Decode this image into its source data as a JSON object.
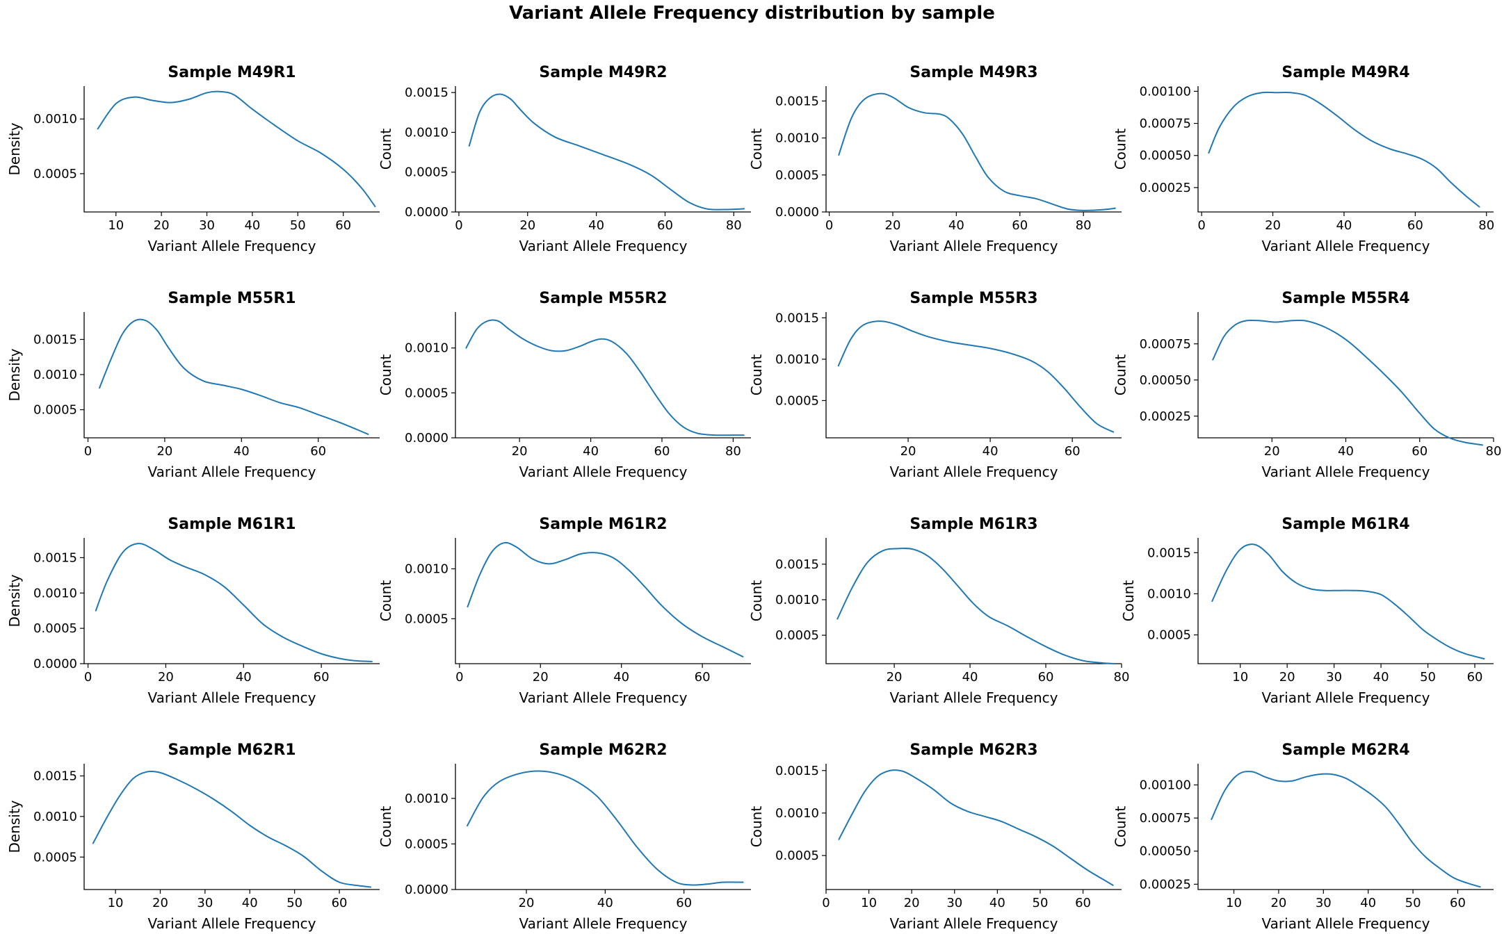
{
  "figure": {
    "suptitle": "Variant Allele Frequency distribution by sample",
    "line_color": "#1f77b4",
    "grid": false,
    "layout": "4x4"
  },
  "chart_data": [
    {
      "type": "line",
      "title": "Sample M49R1",
      "xlabel": "Variant Allele Frequency",
      "ylabel": "Density",
      "xlim": [
        3,
        68
      ],
      "ylim": [
        0.00015,
        0.0013
      ],
      "xticks": [
        10,
        20,
        30,
        40,
        50,
        60
      ],
      "xtick_labels": [
        "10",
        "20",
        "30",
        "40",
        "50",
        "60"
      ],
      "yticks": [
        0.0005,
        0.001
      ],
      "ytick_labels": [
        "0.0005",
        "0.0010"
      ],
      "x": [
        6,
        10,
        14,
        18,
        22,
        26,
        30,
        33,
        36,
        40,
        45,
        50,
        55,
        60,
        64,
        67
      ],
      "y": [
        0.00091,
        0.00114,
        0.0012,
        0.00117,
        0.00115,
        0.00118,
        0.00124,
        0.00125,
        0.00122,
        0.00109,
        0.00094,
        0.0008,
        0.00069,
        0.00054,
        0.00037,
        0.0002
      ]
    },
    {
      "type": "line",
      "title": "Sample M49R2",
      "xlabel": "Variant Allele Frequency",
      "ylabel": "Count",
      "xlim": [
        -1,
        85
      ],
      "ylim": [
        0,
        0.00158
      ],
      "xticks": [
        0,
        20,
        40,
        60,
        80
      ],
      "xtick_labels": [
        "0",
        "20",
        "40",
        "60",
        "80"
      ],
      "yticks": [
        0,
        0.0005,
        0.001,
        0.0015
      ],
      "ytick_labels": [
        "0.0000",
        "0.0005",
        "0.0010",
        "0.0015"
      ],
      "x": [
        3,
        6,
        9,
        12,
        15,
        18,
        22,
        28,
        35,
        42,
        50,
        56,
        62,
        67,
        72,
        77,
        83
      ],
      "y": [
        0.00083,
        0.00125,
        0.00143,
        0.00148,
        0.00142,
        0.00128,
        0.00111,
        0.00094,
        0.00083,
        0.00072,
        0.00059,
        0.00046,
        0.00027,
        0.00012,
        4e-05,
        3e-05,
        4e-05
      ]
    },
    {
      "type": "line",
      "title": "Sample M49R3",
      "xlabel": "Variant Allele Frequency",
      "ylabel": "Count",
      "xlim": [
        -1,
        92
      ],
      "ylim": [
        0,
        0.0017
      ],
      "xticks": [
        0,
        20,
        40,
        60,
        80
      ],
      "xtick_labels": [
        "0",
        "20",
        "40",
        "60",
        "80"
      ],
      "yticks": [
        0,
        0.0005,
        0.001,
        0.0015
      ],
      "ytick_labels": [
        "0.0000",
        "0.0005",
        "0.0010",
        "0.0015"
      ],
      "x": [
        3,
        7,
        11,
        16,
        20,
        25,
        30,
        35,
        38,
        42,
        46,
        50,
        55,
        60,
        65,
        70,
        75,
        80,
        86,
        90
      ],
      "y": [
        0.00077,
        0.00127,
        0.00152,
        0.0016,
        0.00155,
        0.00141,
        0.00134,
        0.00132,
        0.00125,
        0.00105,
        0.00075,
        0.00047,
        0.00028,
        0.00022,
        0.00018,
        0.00011,
        4e-05,
        2e-05,
        3e-05,
        5e-05
      ]
    },
    {
      "type": "line",
      "title": "Sample M49R4",
      "xlabel": "Variant Allele Frequency",
      "ylabel": "Count",
      "xlim": [
        -1,
        82
      ],
      "ylim": [
        6e-05,
        0.00104
      ],
      "xticks": [
        0,
        20,
        40,
        60,
        80
      ],
      "xtick_labels": [
        "0",
        "20",
        "40",
        "60",
        "80"
      ],
      "yticks": [
        0.00025,
        0.0005,
        0.00075,
        0.001
      ],
      "ytick_labels": [
        "0.00025",
        "0.00050",
        "0.00075",
        "0.00100"
      ],
      "x": [
        2,
        5,
        9,
        13,
        17,
        21,
        25,
        29,
        33,
        38,
        43,
        48,
        53,
        58,
        62,
        66,
        70,
        74,
        78
      ],
      "y": [
        0.00052,
        0.00072,
        0.00088,
        0.00096,
        0.00099,
        0.00099,
        0.00099,
        0.00097,
        0.00091,
        0.00081,
        0.0007,
        0.00061,
        0.00055,
        0.00051,
        0.00047,
        0.0004,
        0.00029,
        0.00019,
        0.0001
      ]
    },
    {
      "type": "line",
      "title": "Sample M55R1",
      "xlabel": "Variant Allele Frequency",
      "ylabel": "Density",
      "xlim": [
        -1,
        76
      ],
      "ylim": [
        0.0001,
        0.00189
      ],
      "xticks": [
        0,
        20,
        40,
        60
      ],
      "xtick_labels": [
        "0",
        "20",
        "40",
        "60"
      ],
      "yticks": [
        0.0005,
        0.001,
        0.0015
      ],
      "ytick_labels": [
        "0.0005",
        "0.0010",
        "0.0015"
      ],
      "x": [
        3,
        6,
        9,
        12,
        15,
        18,
        21,
        25,
        30,
        35,
        40,
        45,
        50,
        55,
        60,
        65,
        70,
        73
      ],
      "y": [
        0.00081,
        0.00122,
        0.00158,
        0.00176,
        0.00177,
        0.00163,
        0.00138,
        0.00109,
        0.00091,
        0.00085,
        0.00079,
        0.0007,
        0.0006,
        0.00053,
        0.00043,
        0.00033,
        0.00022,
        0.00015
      ]
    },
    {
      "type": "line",
      "title": "Sample M55R2",
      "xlabel": "Variant Allele Frequency",
      "ylabel": "Count",
      "xlim": [
        2,
        85
      ],
      "ylim": [
        0,
        0.0014
      ],
      "xticks": [
        20,
        40,
        60,
        80
      ],
      "xtick_labels": [
        "20",
        "40",
        "60",
        "80"
      ],
      "yticks": [
        0,
        0.0005,
        0.001
      ],
      "ytick_labels": [
        "0.0000",
        "0.0005",
        "0.0010"
      ],
      "x": [
        5,
        8,
        11,
        14,
        17,
        21,
        25,
        29,
        33,
        37,
        40,
        43,
        46,
        50,
        54,
        58,
        62,
        66,
        70,
        75,
        80,
        83
      ],
      "y": [
        0.001,
        0.00121,
        0.0013,
        0.0013,
        0.00121,
        0.0011,
        0.00102,
        0.00097,
        0.00097,
        0.00102,
        0.00107,
        0.0011,
        0.00107,
        0.00094,
        0.00073,
        0.00049,
        0.00027,
        0.00012,
        5e-05,
        3e-05,
        3e-05,
        3e-05
      ]
    },
    {
      "type": "line",
      "title": "Sample M55R3",
      "xlabel": "Variant Allele Frequency",
      "ylabel": "Count",
      "xlim": [
        0,
        72
      ],
      "ylim": [
        5e-05,
        0.00157
      ],
      "xticks": [
        20,
        40,
        60
      ],
      "xtick_labels": [
        "20",
        "40",
        "60"
      ],
      "yticks": [
        0.0005,
        0.001,
        0.0015
      ],
      "ytick_labels": [
        "0.0005",
        "0.0010",
        "0.0015"
      ],
      "x": [
        3,
        6,
        9,
        13,
        17,
        21,
        25,
        30,
        35,
        40,
        45,
        50,
        54,
        58,
        62,
        66,
        70
      ],
      "y": [
        0.00092,
        0.00124,
        0.00141,
        0.00146,
        0.00142,
        0.00134,
        0.00127,
        0.00121,
        0.00117,
        0.00113,
        0.00107,
        0.00098,
        0.00085,
        0.00065,
        0.00042,
        0.00022,
        0.00012
      ]
    },
    {
      "type": "line",
      "title": "Sample M55R4",
      "xlabel": "Variant Allele Frequency",
      "ylabel": "Count",
      "xlim": [
        0,
        80
      ],
      "ylim": [
        0.0001,
        0.00097
      ],
      "xticks": [
        20,
        40,
        60,
        80
      ],
      "xtick_labels": [
        "20",
        "40",
        "60",
        "80"
      ],
      "yticks": [
        0.00025,
        0.0005,
        0.00075
      ],
      "ytick_labels": [
        "0.00025",
        "0.00050",
        "0.00075"
      ],
      "x": [
        4,
        7,
        10,
        13,
        17,
        21,
        25,
        29,
        33,
        37,
        41,
        45,
        50,
        55,
        60,
        64,
        68,
        72,
        77
      ],
      "y": [
        0.00064,
        0.0008,
        0.00088,
        0.00091,
        0.00091,
        0.0009,
        0.00091,
        0.00091,
        0.00088,
        0.00083,
        0.00076,
        0.00067,
        0.00055,
        0.00042,
        0.00027,
        0.00016,
        0.0001,
        7e-05,
        5e-05
      ]
    },
    {
      "type": "line",
      "title": "Sample M61R1",
      "xlabel": "Variant Allele Frequency",
      "ylabel": "Density",
      "xlim": [
        -1,
        75
      ],
      "ylim": [
        0,
        0.00178
      ],
      "xticks": [
        0,
        20,
        40,
        60
      ],
      "xtick_labels": [
        "0",
        "20",
        "40",
        "60"
      ],
      "yticks": [
        0,
        0.0005,
        0.001,
        0.0015
      ],
      "ytick_labels": [
        "0.0000",
        "0.0005",
        "0.0010",
        "0.0015"
      ],
      "x": [
        2,
        5,
        9,
        13,
        17,
        21,
        25,
        30,
        35,
        40,
        45,
        50,
        55,
        60,
        65,
        69,
        73
      ],
      "y": [
        0.00075,
        0.00118,
        0.00158,
        0.0017,
        0.00161,
        0.00147,
        0.00137,
        0.00126,
        0.00109,
        0.00083,
        0.00056,
        0.00038,
        0.00025,
        0.00014,
        7e-05,
        4e-05,
        3e-05
      ]
    },
    {
      "type": "line",
      "title": "Sample M61R2",
      "xlabel": "Variant Allele Frequency",
      "ylabel": "Count",
      "xlim": [
        -1,
        72
      ],
      "ylim": [
        5e-05,
        0.00131
      ],
      "xticks": [
        0,
        20,
        40,
        60
      ],
      "xtick_labels": [
        "0",
        "20",
        "40",
        "60"
      ],
      "yticks": [
        0.0005,
        0.001
      ],
      "ytick_labels": [
        "0.0005",
        "0.0010"
      ],
      "x": [
        2,
        5,
        8,
        11,
        14,
        18,
        22,
        26,
        30,
        34,
        38,
        42,
        46,
        50,
        55,
        60,
        65,
        70
      ],
      "y": [
        0.00062,
        0.00094,
        0.00117,
        0.00126,
        0.00122,
        0.0011,
        0.00105,
        0.00109,
        0.00115,
        0.00116,
        0.00111,
        0.00098,
        0.00081,
        0.00063,
        0.00045,
        0.00032,
        0.00022,
        0.00012
      ]
    },
    {
      "type": "line",
      "title": "Sample M61R3",
      "xlabel": "Variant Allele Frequency",
      "ylabel": "Count",
      "xlim": [
        2,
        80
      ],
      "ylim": [
        0.0001,
        0.00187
      ],
      "xticks": [
        20,
        40,
        60,
        80
      ],
      "xtick_labels": [
        "20",
        "40",
        "60",
        "80"
      ],
      "yticks": [
        0.0005,
        0.001,
        0.0015
      ],
      "ytick_labels": [
        "0.0005",
        "0.0010",
        "0.0015"
      ],
      "x": [
        5,
        9,
        13,
        17,
        21,
        25,
        29,
        33,
        37,
        41,
        45,
        50,
        55,
        60,
        65,
        70,
        75,
        78
      ],
      "y": [
        0.00073,
        0.00118,
        0.00153,
        0.00169,
        0.00172,
        0.00171,
        0.00161,
        0.00142,
        0.00118,
        0.00094,
        0.00076,
        0.00063,
        0.00048,
        0.00034,
        0.00022,
        0.00014,
        0.00011,
        0.0001
      ]
    },
    {
      "type": "line",
      "title": "Sample M61R4",
      "xlabel": "Variant Allele Frequency",
      "ylabel": "Count",
      "xlim": [
        1,
        64
      ],
      "ylim": [
        0.00015,
        0.00168
      ],
      "xticks": [
        10,
        20,
        30,
        40,
        50,
        60
      ],
      "xtick_labels": [
        "10",
        "20",
        "30",
        "40",
        "50",
        "60"
      ],
      "yticks": [
        0.0005,
        0.001,
        0.0015
      ],
      "ytick_labels": [
        "0.0005",
        "0.0010",
        "0.0015"
      ],
      "x": [
        4,
        7,
        10,
        13,
        16,
        19,
        22,
        25,
        28,
        31,
        34,
        37,
        40,
        43,
        46,
        49,
        52,
        55,
        58,
        62
      ],
      "y": [
        0.00091,
        0.00128,
        0.00154,
        0.0016,
        0.00148,
        0.00127,
        0.00113,
        0.00106,
        0.00104,
        0.00104,
        0.00104,
        0.00103,
        0.00099,
        0.00087,
        0.00072,
        0.00056,
        0.00044,
        0.00034,
        0.00027,
        0.00021
      ]
    },
    {
      "type": "line",
      "title": "Sample M62R1",
      "xlabel": "Variant Allele Frequency",
      "ylabel": "Density",
      "xlim": [
        3,
        69
      ],
      "ylim": [
        0.0001,
        0.00165
      ],
      "xticks": [
        10,
        20,
        30,
        40,
        50,
        60
      ],
      "xtick_labels": [
        "10",
        "20",
        "30",
        "40",
        "50",
        "60"
      ],
      "yticks": [
        0.0005,
        0.001,
        0.0015
      ],
      "ytick_labels": [
        "0.0005",
        "0.0010",
        "0.0015"
      ],
      "x": [
        5,
        8,
        11,
        14,
        17,
        20,
        24,
        28,
        32,
        36,
        40,
        44,
        48,
        52,
        56,
        60,
        64,
        67
      ],
      "y": [
        0.00067,
        0.00098,
        0.00126,
        0.00147,
        0.00155,
        0.00154,
        0.00145,
        0.00134,
        0.00121,
        0.00106,
        0.00089,
        0.00075,
        0.00064,
        0.00051,
        0.00033,
        0.00019,
        0.00015,
        0.00013
      ]
    },
    {
      "type": "line",
      "title": "Sample M62R2",
      "xlabel": "Variant Allele Frequency",
      "ylabel": "Count",
      "xlim": [
        2,
        77
      ],
      "ylim": [
        0,
        0.00138
      ],
      "xticks": [
        20,
        40,
        60
      ],
      "xtick_labels": [
        "20",
        "40",
        "60"
      ],
      "yticks": [
        0,
        0.0005,
        0.001
      ],
      "ytick_labels": [
        "0.0000",
        "0.0005",
        "0.0010"
      ],
      "x": [
        5,
        9,
        13,
        18,
        23,
        28,
        33,
        38,
        43,
        48,
        53,
        58,
        62,
        66,
        70,
        75
      ],
      "y": [
        0.0007,
        0.00101,
        0.00118,
        0.00127,
        0.0013,
        0.00127,
        0.00118,
        0.00102,
        0.00076,
        0.00047,
        0.00023,
        8e-05,
        5e-05,
        6e-05,
        8e-05,
        8e-05
      ]
    },
    {
      "type": "line",
      "title": "Sample M62R3",
      "xlabel": "Variant Allele Frequency",
      "ylabel": "Count",
      "xlim": [
        0,
        69
      ],
      "ylim": [
        0.0001,
        0.00158
      ],
      "xticks": [
        0,
        10,
        20,
        30,
        40,
        50,
        60
      ],
      "xtick_labels": [
        "0",
        "10",
        "20",
        "30",
        "40",
        "50",
        "60"
      ],
      "yticks": [
        0.0005,
        0.001,
        0.0015
      ],
      "ytick_labels": [
        "0.0005",
        "0.0010",
        "0.0015"
      ],
      "x": [
        3,
        6,
        9,
        12,
        15,
        18,
        21,
        25,
        29,
        33,
        37,
        41,
        45,
        49,
        53,
        57,
        61,
        65,
        67
      ],
      "y": [
        0.00069,
        0.00098,
        0.00125,
        0.00143,
        0.0015,
        0.00149,
        0.00141,
        0.00128,
        0.00112,
        0.00102,
        0.00096,
        0.0009,
        0.00081,
        0.00072,
        0.00061,
        0.00047,
        0.00033,
        0.00021,
        0.00015
      ]
    },
    {
      "type": "line",
      "title": "Sample M62R4",
      "xlabel": "Variant Allele Frequency",
      "ylabel": "Count",
      "xlim": [
        2,
        68
      ],
      "ylim": [
        0.00021,
        0.00116
      ],
      "xticks": [
        10,
        20,
        30,
        40,
        50,
        60
      ],
      "xtick_labels": [
        "10",
        "20",
        "30",
        "40",
        "50",
        "60"
      ],
      "yticks": [
        0.00025,
        0.0005,
        0.00075,
        0.001
      ],
      "ytick_labels": [
        "0.00025",
        "0.00050",
        "0.00075",
        "0.00100"
      ],
      "x": [
        5,
        8,
        11,
        14,
        17,
        20,
        23,
        26,
        29,
        32,
        35,
        38,
        41,
        44,
        47,
        50,
        53,
        56,
        59,
        62,
        65
      ],
      "y": [
        0.00074,
        0.00096,
        0.00108,
        0.0011,
        0.00106,
        0.00103,
        0.00103,
        0.00106,
        0.00108,
        0.00108,
        0.00105,
        0.00099,
        0.00092,
        0.00083,
        0.0007,
        0.00056,
        0.00045,
        0.00037,
        0.0003,
        0.00026,
        0.00023
      ]
    }
  ]
}
